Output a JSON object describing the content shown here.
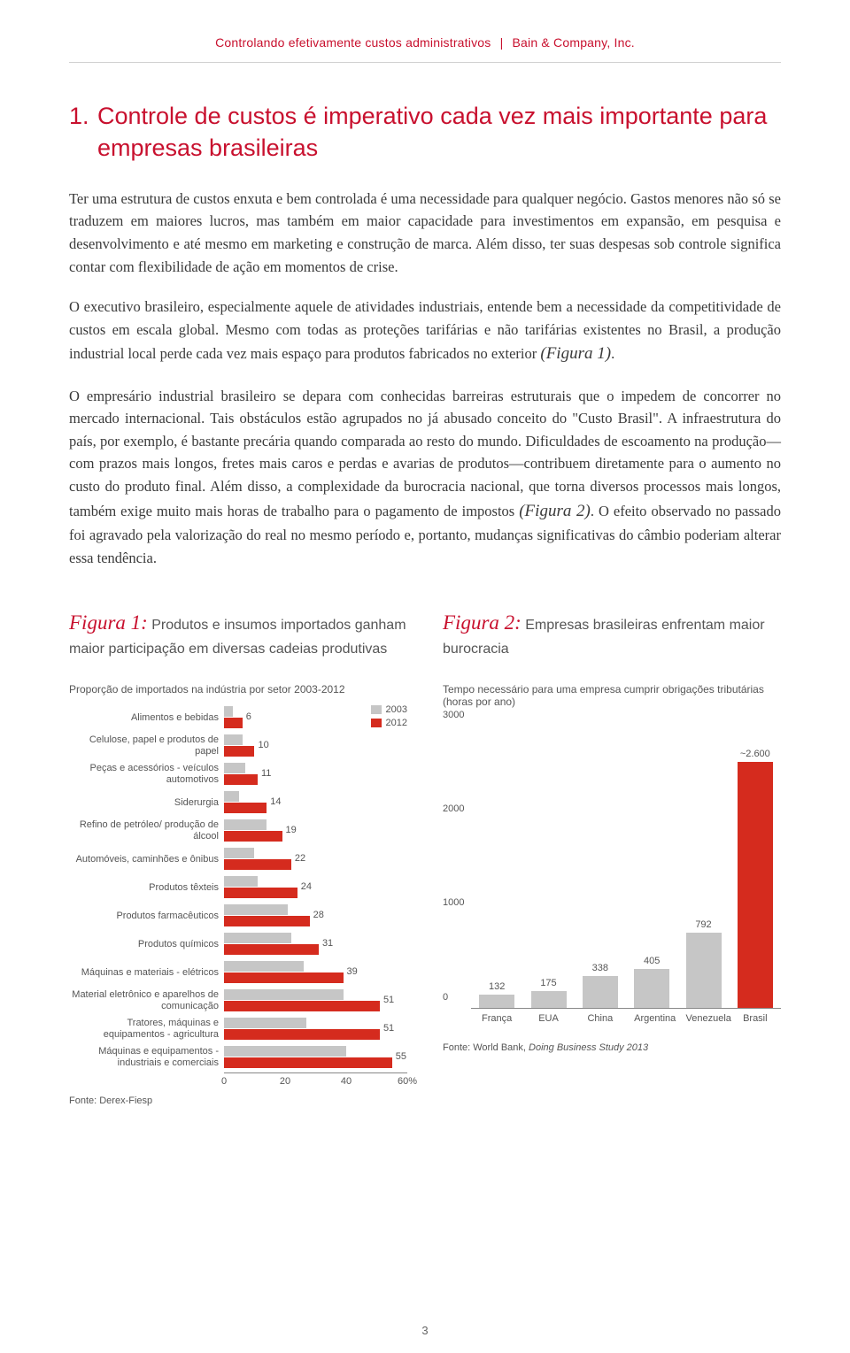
{
  "header": {
    "doc_title": "Controlando efetivamente custos administrativos",
    "company": "Bain & Company, Inc."
  },
  "section": {
    "number": "1.",
    "title": "Controle de custos é imperativo cada vez mais importante para empresas brasileiras"
  },
  "paragraphs": {
    "p1": "Ter uma estrutura de custos enxuta e bem controlada é uma necessidade para qualquer negócio. Gastos menores não só se traduzem em maiores lucros, mas também em maior capacidade para investimentos em expansão, em pesquisa e desenvolvimento e até mesmo em marketing e construção de marca. Além disso, ter suas despesas sob controle significa contar com flexibilidade de ação em momentos de crise.",
    "p2a": "O executivo brasileiro, especialmente aquele de atividades industriais, entende bem a necessidade da competitividade de custos em escala global. Mesmo com todas as proteções tarifárias e não tarifárias existentes no Brasil, a produção industrial local perde cada vez mais espaço para produtos fabricados no exterior ",
    "p2_figref": "(Figura 1)",
    "p2b": ".",
    "p3a": "O empresário industrial brasileiro se depara com conhecidas barreiras estruturais que o impedem de concorrer no mercado internacional. Tais obstáculos estão agrupados no já abusado conceito do \"Custo Brasil\". A infraestrutura do país, por exemplo, é bastante precária quando comparada ao resto do mundo. Dificuldades de escoamento na produção—com prazos mais longos, fretes mais caros e perdas e avarias de produtos—contribuem diretamente para o aumento no custo do produto final. Além disso, a complexidade da burocracia nacional, que torna diversos processos mais longos, também exige muito mais horas de trabalho para o pagamento de impostos ",
    "p3_figref": "(Figura 2)",
    "p3b": ". O efeito observado no passado foi agravado pela valorização do real no mesmo período e, portanto, mudanças significativas do câmbio poderiam alterar essa tendência."
  },
  "figure1": {
    "label": "Figura 1:",
    "title": " Produtos e insumos importados ganham maior participação em diversas cadeias produtivas",
    "subtitle": "Proporção de importados na indústria por setor 2003-2012",
    "legend": {
      "a": "2003",
      "b": "2012"
    },
    "colors": {
      "bar2003": "#c6c6c6",
      "bar2012": "#d52b1e"
    },
    "xmax": 60,
    "xticks": [
      {
        "pos": 0,
        "label": "0"
      },
      {
        "pos": 20,
        "label": "20"
      },
      {
        "pos": 40,
        "label": "40"
      },
      {
        "pos": 60,
        "label": "60%"
      }
    ],
    "rows": [
      {
        "label": "Alimentos e bebidas",
        "v2003": 3,
        "v2012": 6,
        "display": "6"
      },
      {
        "label": "Celulose, papel e produtos de papel",
        "v2003": 6,
        "v2012": 10,
        "display": "10"
      },
      {
        "label": "Peças e acessórios - veículos automotivos",
        "v2003": 7,
        "v2012": 11,
        "display": "11"
      },
      {
        "label": "Siderurgia",
        "v2003": 5,
        "v2012": 14,
        "display": "14"
      },
      {
        "label": "Refino de petróleo/ produção de álcool",
        "v2003": 14,
        "v2012": 19,
        "display": "19"
      },
      {
        "label": "Automóveis, caminhões e ônibus",
        "v2003": 10,
        "v2012": 22,
        "display": "22"
      },
      {
        "label": "Produtos têxteis",
        "v2003": 11,
        "v2012": 24,
        "display": "24"
      },
      {
        "label": "Produtos farmacêuticos",
        "v2003": 21,
        "v2012": 28,
        "display": "28"
      },
      {
        "label": "Produtos químicos",
        "v2003": 22,
        "v2012": 31,
        "display": "31"
      },
      {
        "label": "Máquinas e materiais - elétricos",
        "v2003": 26,
        "v2012": 39,
        "display": "39"
      },
      {
        "label": "Material eletrônico e aparelhos de comunicação",
        "v2003": 39,
        "v2012": 51,
        "display": "51"
      },
      {
        "label": "Tratores, máquinas e equipamentos - agricultura",
        "v2003": 27,
        "v2012": 51,
        "display": "51"
      },
      {
        "label": "Máquinas e equipamentos - industriais e comerciais",
        "v2003": 40,
        "v2012": 55,
        "display": "55"
      }
    ],
    "source": "Fonte: Derex-Fiesp"
  },
  "figure2": {
    "label": "Figura 2:",
    "title": " Empresas brasileiras enfrentam maior burocracia",
    "subtitle": "Tempo necessário para uma empresa cumprir obrigações tributárias (horas por ano)",
    "colors": {
      "bar_normal": "#c6c6c6",
      "bar_highlight": "#d52b1e"
    },
    "ymax": 3000,
    "yticks": [
      {
        "v": 0,
        "label": "0"
      },
      {
        "v": 1000,
        "label": "1000"
      },
      {
        "v": 2000,
        "label": "2000"
      },
      {
        "v": 3000,
        "label": "3000"
      }
    ],
    "bars": [
      {
        "cat": "França",
        "value": 132,
        "display": "132",
        "highlight": false
      },
      {
        "cat": "EUA",
        "value": 175,
        "display": "175",
        "highlight": false
      },
      {
        "cat": "China",
        "value": 338,
        "display": "338",
        "highlight": false
      },
      {
        "cat": "Argentina",
        "value": 405,
        "display": "405",
        "highlight": false
      },
      {
        "cat": "Venezuela",
        "value": 792,
        "display": "792",
        "highlight": false
      },
      {
        "cat": "Brasil",
        "value": 2600,
        "display": "~2.600",
        "highlight": true
      }
    ],
    "source_a": "Fonte: World Bank, ",
    "source_b": "Doing Business Study 2013"
  },
  "page_number": "3"
}
